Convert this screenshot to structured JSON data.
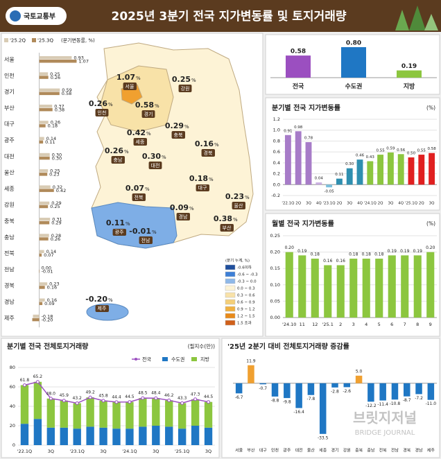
{
  "header": {
    "ministry": "국토교통부",
    "title": "2025년 3분기 전국 지가변동률 및 토지거래량"
  },
  "map": {
    "unit": "%",
    "legend_title": "(분기 누계, %)",
    "legend": [
      {
        "label": "-0.6이하",
        "color": "#1f4e9c"
      },
      {
        "label": "-0.6 ~ -0.3",
        "color": "#3d7fd6"
      },
      {
        "label": "-0.3 ~ 0.0",
        "color": "#8fb8e8"
      },
      {
        "label": "0.0 ~ 0.3",
        "color": "#fdf3d6"
      },
      {
        "label": "0.3 ~ 0.6",
        "color": "#f8e2a8"
      },
      {
        "label": "0.6 ~ 0.9",
        "color": "#f4cf78"
      },
      {
        "label": "0.9 ~ 1.2",
        "color": "#f0b040"
      },
      {
        "label": "1.2 ~ 1.5",
        "color": "#e88a1a"
      },
      {
        "label": "1.5 초과",
        "color": "#d0601a"
      }
    ]
  },
  "watermark": {
    "name": "브릿지저널",
    "english": "BRIDGE JOURNAL"
  },
  "chart_data": [
    {
      "type": "hbar",
      "legend_title": "(분기변동률, %)",
      "categories": [
        "서울",
        "인천",
        "경기",
        "부산",
        "대구",
        "광주",
        "대전",
        "울산",
        "세종",
        "강원",
        "충북",
        "충남",
        "전북",
        "전남",
        "경북",
        "경남",
        "제주"
      ],
      "series": [
        {
          "name": "'25.2Q",
          "color": "#d8cbb4",
          "values": [
            0.93,
            0.25,
            0.59,
            0.37,
            0.26,
            0.14,
            0.3,
            0.25,
            0.32,
            0.29,
            0.31,
            0.28,
            0.14,
            0.0,
            0.23,
            0.16,
            -0.18
          ],
          "value_labels": [
            "0.93",
            "0.25",
            "0.59",
            "0.37",
            "0.26",
            "0.14",
            "0.30",
            "0.25",
            "0.32",
            "0.29",
            "0.31",
            "0.28",
            "0.14",
            "0.00",
            "0.23",
            "0.16",
            "-0.18"
          ]
        },
        {
          "name": "'25.3Q",
          "color": "#b08a5a",
          "values": [
            1.07,
            0.26,
            0.58,
            0.38,
            0.18,
            0.11,
            0.3,
            0.23,
            0.42,
            0.25,
            0.29,
            0.26,
            0.07,
            -0.01,
            0.16,
            0.09,
            -0.2
          ],
          "value_labels": [
            "1.07",
            "0.26",
            "0.58",
            "0.38",
            "0.18",
            "0.11",
            "0.30",
            "0.23",
            "0.42",
            "0.25",
            "0.29",
            "0.26",
            "0.07",
            "-0.01",
            "0.16",
            "0.09",
            "-0.20"
          ]
        }
      ],
      "xlim": [
        -0.25,
        1.1
      ]
    },
    {
      "type": "bar",
      "categories": [
        "전국",
        "수도권",
        "지방"
      ],
      "values": [
        0.58,
        0.8,
        0.19
      ],
      "value_labels": [
        "0.58",
        "0.80",
        "0.19"
      ],
      "colors": [
        "#9b4fc0",
        "#1f77c4",
        "#8cc63f"
      ],
      "ylim": [
        0,
        0.8
      ]
    },
    {
      "type": "bar",
      "title": "분기별 전국 지가변동률",
      "unit": "(%)",
      "categories": [
        "'22.1Q",
        "2Q",
        "3Q",
        "4Q",
        "'23.1Q",
        "2Q",
        "3Q",
        "4Q",
        "'24.1Q",
        "2Q",
        "3Q",
        "4Q",
        "'25.1Q",
        "2Q",
        "3Q"
      ],
      "values": [
        0.91,
        0.98,
        0.78,
        0.04,
        -0.05,
        0.11,
        0.3,
        0.46,
        0.43,
        0.55,
        0.59,
        0.56,
        0.5,
        0.55,
        0.58
      ],
      "value_labels": [
        "0.91",
        "0.98",
        "0.78",
        "0.04",
        "-0.05",
        "0.11",
        "0.30",
        "0.46",
        "0.43",
        "0.55",
        "0.59",
        "0.56",
        "0.50",
        "0.55",
        "0.58"
      ],
      "colors": [
        "#a77cc8",
        "#a77cc8",
        "#a77cc8",
        "#c9aee0",
        "#7cc0dc",
        "#2f8fb0",
        "#2f8fb0",
        "#2f8fb0",
        "#8cc63f",
        "#8cc63f",
        "#8cc63f",
        "#8cc63f",
        "#e02020",
        "#e02020",
        "#e02020"
      ],
      "ylim": [
        -0.2,
        1.2
      ],
      "yticks": [
        -0.2,
        {
          "value": 0,
          "label": "0.0"
        },
        0.2,
        0.4,
        0.6,
        0.8,
        {
          "value": 1,
          "label": "1.0"
        },
        1.2
      ]
    },
    {
      "type": "bar",
      "title": "월별 전국 지가변동률",
      "unit": "(%)",
      "categories": [
        "'24.10",
        "11",
        "12",
        "'25.1",
        "2",
        "3",
        "4",
        "5",
        "6",
        "7",
        "8",
        "9"
      ],
      "values": [
        0.2,
        0.19,
        0.18,
        0.16,
        0.16,
        0.18,
        0.18,
        0.18,
        0.19,
        0.19,
        0.19,
        0.2
      ],
      "value_labels": [
        "0.20",
        "0.19",
        "0.18",
        "0.16",
        "0.16",
        "0.18",
        "0.18",
        "0.18",
        "0.19",
        "0.19",
        "0.19",
        "0.20"
      ],
      "colors": [
        "#8cc63f",
        "#8cc63f",
        "#8cc63f",
        "#8cc63f",
        "#8cc63f",
        "#8cc63f",
        "#8cc63f",
        "#8cc63f",
        "#8cc63f",
        "#8cc63f",
        "#8cc63f",
        "#8cc63f"
      ],
      "ylim": [
        0,
        0.25
      ],
      "yticks": [
        {
          "value": 0,
          "label": "0.00"
        },
        0.05,
        {
          "value": 0.1,
          "label": "0.10"
        },
        0.15,
        {
          "value": 0.2,
          "label": "0.20"
        },
        0.25
      ]
    },
    {
      "type": "combo",
      "title": "분기별 전국 전체토지거래량",
      "unit": "(필지수(만))",
      "categories": [
        "'22.1Q",
        null,
        "3Q",
        null,
        "'23.1Q",
        null,
        "3Q",
        null,
        "'24.1Q",
        null,
        "3Q",
        null,
        "'25.1Q",
        null,
        "3Q"
      ],
      "series": [
        {
          "name": "전국",
          "color": "#9b4fc0",
          "values": [
            61.8,
            65.2,
            48.0,
            45.9,
            43.2,
            49.2,
            45.8,
            44.4,
            44.5,
            48.5,
            48.4,
            46.2,
            43.3,
            47.3,
            44.5
          ],
          "value_labels": [
            "61.8",
            "65.2",
            "48.0",
            "45.9",
            "43.2",
            "49.2",
            "45.8",
            "44.4",
            "44.5",
            "48.5",
            "48.4",
            "46.2",
            "43.3",
            "47.3",
            "44.5"
          ]
        },
        {
          "name": "수도권",
          "color": "#1f77c4",
          "values": [
            22,
            27,
            18,
            18,
            17,
            19,
            18,
            17,
            17,
            19,
            20,
            19,
            17,
            20,
            18
          ]
        },
        {
          "name": "지방",
          "color": "#8cc63f",
          "values": [
            39.8,
            38.2,
            30.0,
            27.9,
            26.2,
            30.2,
            27.8,
            27.4,
            27.5,
            29.5,
            28.4,
            27.2,
            26.3,
            27.3,
            26.5
          ]
        }
      ],
      "ylim": [
        0,
        80
      ],
      "yticks": [
        0,
        20,
        40,
        60,
        80
      ]
    },
    {
      "type": "bar",
      "title": "'25년 2분기 대비 전체토지거래량 증감률",
      "categories": [
        "서울",
        "부산",
        "대구",
        "인천",
        "광주",
        "대전",
        "울산",
        "세종",
        "경기",
        "강원",
        "충북",
        "충남",
        "전북",
        "전남",
        "경북",
        "경남",
        "제주"
      ],
      "values": [
        -6.7,
        11.9,
        -0.7,
        -8.8,
        -9.8,
        -16.4,
        -7.8,
        -33.5,
        -2.8,
        -2.6,
        5.0,
        -12.2,
        -11.4,
        -10.8,
        -8.7,
        -7.2,
        -11.0
      ],
      "value_labels": [
        "-6.7",
        "11.9",
        "-0.7",
        "-8.8",
        "-9.8",
        "-16.4",
        "-7.8",
        "-33.5",
        "-2.8",
        "-2.6",
        "5.0",
        "-12.2",
        "-11.4",
        "-10.8",
        "-8.7",
        "-7.2",
        "-11.0"
      ],
      "colors": [
        "#1f77c4",
        "#f0a030",
        "#1f77c4",
        "#1f77c4",
        "#1f77c4",
        "#1f77c4",
        "#1f77c4",
        "#1f77c4",
        "#1f77c4",
        "#1f77c4",
        "#f0a030",
        "#1f77c4",
        "#1f77c4",
        "#1f77c4",
        "#1f77c4",
        "#1f77c4",
        "#1f77c4"
      ],
      "ylim": [
        -40,
        15
      ]
    }
  ]
}
